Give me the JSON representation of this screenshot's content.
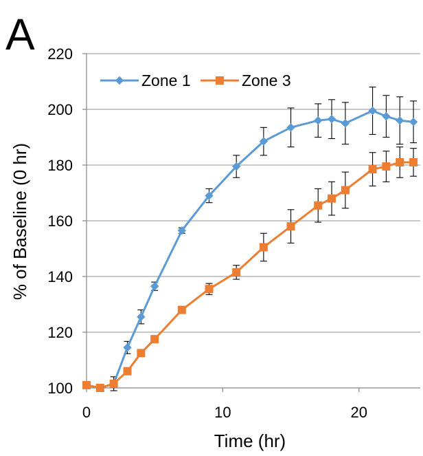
{
  "panel_label": "A",
  "chart_data": {
    "type": "line",
    "title": "",
    "xlabel": "Time (hr)",
    "ylabel": "% of Baseline (0 hr)",
    "xlim": [
      0,
      24.5
    ],
    "ylim": [
      100,
      220
    ],
    "xticks": [
      0,
      10,
      20
    ],
    "yticks": [
      100,
      120,
      140,
      160,
      180,
      200,
      220
    ],
    "grid": "horizontal",
    "legend": "top-left",
    "series": [
      {
        "name": "Zone 1",
        "color": "#5b9bd5",
        "marker": "diamond",
        "x": [
          0,
          1,
          2,
          3,
          4,
          5,
          7,
          9,
          11,
          13,
          15,
          17,
          18,
          19,
          21,
          22,
          23,
          24
        ],
        "y": [
          101,
          100,
          101.5,
          114.5,
          125.5,
          136.5,
          156.5,
          169,
          179.5,
          188.5,
          193.5,
          196,
          196.5,
          195,
          199.5,
          197.5,
          196,
          195.5
        ],
        "err": [
          1,
          0.8,
          2.5,
          2.2,
          2.5,
          1.5,
          1,
          2.5,
          4,
          5,
          7,
          6,
          7,
          7.5,
          8.5,
          7.5,
          8.5,
          7.5
        ]
      },
      {
        "name": "Zone 3",
        "color": "#ed7d31",
        "marker": "square",
        "x": [
          0,
          1,
          2,
          3,
          4,
          5,
          7,
          9,
          11,
          13,
          15,
          17,
          18,
          19,
          21,
          22,
          23,
          24
        ],
        "y": [
          101,
          100,
          101.5,
          106,
          112.5,
          117.5,
          128,
          135.5,
          141.5,
          150.5,
          158,
          165.5,
          168,
          171,
          178.5,
          179.5,
          181,
          181
        ],
        "err": [
          1,
          0.8,
          1,
          1,
          1,
          0.8,
          1,
          2,
          2.5,
          5,
          6,
          6,
          6,
          6.5,
          6,
          5.5,
          5.5,
          5
        ]
      }
    ]
  }
}
